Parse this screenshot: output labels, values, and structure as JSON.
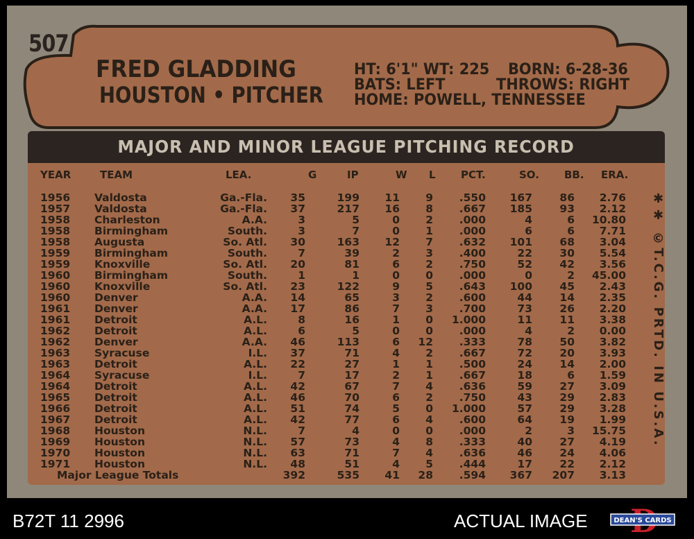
{
  "card": {
    "number": "507",
    "player_name": "FRED GLADDING",
    "team_position": "HOUSTON • PITCHER",
    "bio": {
      "ht_wt": "HT: 6'1\" WT: 225",
      "born": "BORN: 6-28-36",
      "bats": "BATS: LEFT",
      "throws": "THROWS: RIGHT",
      "home": "HOME: POWELL, TENNESSEE"
    },
    "table_title": "MAJOR AND MINOR LEAGUE PITCHING RECORD",
    "columns": [
      "YEAR",
      "TEAM",
      "LEA.",
      "G",
      "IP",
      "W",
      "L",
      "PCT.",
      "SO.",
      "BB.",
      "ERA."
    ],
    "rows": [
      [
        "1956",
        "Valdosta",
        "Ga.-Fla.",
        "35",
        "199",
        "11",
        "9",
        ".550",
        "167",
        "86",
        "2.76"
      ],
      [
        "1957",
        "Valdosta",
        "Ga.-Fla.",
        "37",
        "217",
        "16",
        "8",
        ".667",
        "185",
        "93",
        "2.12"
      ],
      [
        "1958",
        "Charleston",
        "A.A.",
        "3",
        "5",
        "0",
        "2",
        ".000",
        "4",
        "6",
        "10.80"
      ],
      [
        "1958",
        "Birmingham",
        "South.",
        "3",
        "7",
        "0",
        "1",
        ".000",
        "6",
        "6",
        "7.71"
      ],
      [
        "1958",
        "Augusta",
        "So. Atl.",
        "30",
        "163",
        "12",
        "7",
        ".632",
        "101",
        "68",
        "3.04"
      ],
      [
        "1959",
        "Birmingham",
        "South.",
        "7",
        "39",
        "2",
        "3",
        ".400",
        "22",
        "30",
        "5.54"
      ],
      [
        "1959",
        "Knoxville",
        "So. Atl.",
        "20",
        "81",
        "6",
        "2",
        ".750",
        "52",
        "42",
        "3.56"
      ],
      [
        "1960",
        "Birmingham",
        "South.",
        "1",
        "1",
        "0",
        "0",
        ".000",
        "0",
        "2",
        "45.00"
      ],
      [
        "1960",
        "Knoxville",
        "So. Atl.",
        "23",
        "122",
        "9",
        "5",
        ".643",
        "100",
        "45",
        "2.43"
      ],
      [
        "1960",
        "Denver",
        "A.A.",
        "14",
        "65",
        "3",
        "2",
        ".600",
        "44",
        "14",
        "2.35"
      ],
      [
        "1961",
        "Denver",
        "A.A.",
        "17",
        "86",
        "7",
        "3",
        ".700",
        "73",
        "26",
        "2.20"
      ],
      [
        "1961",
        "Detroit",
        "A.L.",
        "8",
        "16",
        "1",
        "0",
        "1.000",
        "11",
        "11",
        "3.38"
      ],
      [
        "1962",
        "Detroit",
        "A.L.",
        "6",
        "5",
        "0",
        "0",
        ".000",
        "4",
        "2",
        "0.00"
      ],
      [
        "1962",
        "Denver",
        "A.A.",
        "46",
        "113",
        "6",
        "12",
        ".333",
        "78",
        "50",
        "3.82"
      ],
      [
        "1963",
        "Syracuse",
        "I.L.",
        "37",
        "71",
        "4",
        "2",
        ".667",
        "72",
        "20",
        "3.93"
      ],
      [
        "1963",
        "Detroit",
        "A.L.",
        "22",
        "27",
        "1",
        "1",
        ".500",
        "24",
        "14",
        "2.00"
      ],
      [
        "1964",
        "Syracuse",
        "I.L.",
        "7",
        "17",
        "2",
        "1",
        ".667",
        "18",
        "6",
        "1.59"
      ],
      [
        "1964",
        "Detroit",
        "A.L.",
        "42",
        "67",
        "7",
        "4",
        ".636",
        "59",
        "27",
        "3.09"
      ],
      [
        "1965",
        "Detroit",
        "A.L.",
        "46",
        "70",
        "6",
        "2",
        ".750",
        "43",
        "29",
        "2.83"
      ],
      [
        "1966",
        "Detroit",
        "A.L.",
        "51",
        "74",
        "5",
        "0",
        "1.000",
        "57",
        "29",
        "3.28"
      ],
      [
        "1967",
        "Detroit",
        "A.L.",
        "42",
        "77",
        "6",
        "4",
        ".600",
        "64",
        "19",
        "1.99"
      ],
      [
        "1968",
        "Houston",
        "N.L.",
        "7",
        "4",
        "0",
        "0",
        ".000",
        "2",
        "3",
        "15.75"
      ],
      [
        "1969",
        "Houston",
        "N.L.",
        "57",
        "73",
        "4",
        "8",
        ".333",
        "40",
        "27",
        "4.19"
      ],
      [
        "1970",
        "Houston",
        "N.L.",
        "63",
        "71",
        "7",
        "4",
        ".636",
        "46",
        "24",
        "4.06"
      ],
      [
        "1971",
        "Houston",
        "N.L.",
        "48",
        "51",
        "4",
        "5",
        ".444",
        "17",
        "22",
        "2.12"
      ]
    ],
    "totals": {
      "label": "Major League Totals",
      "values": [
        "392",
        "535",
        "41",
        "28",
        ".594",
        "367",
        "207",
        "3.13"
      ]
    },
    "side_text": "✱✱ ©T.C.G. PRTD. IN U.S.A."
  },
  "footer": {
    "id_text": "B72T 11 2996",
    "note_text": "ACTUAL IMAGE",
    "logo_text": "DEAN'S CARDS",
    "logo_letter": "D"
  },
  "colors": {
    "card_gray": "#8f877a",
    "card_brown": "#a26a4a",
    "dark_bar": "#2c2420",
    "logo_red": "#c8202a",
    "logo_blue": "#2a4a9a"
  }
}
